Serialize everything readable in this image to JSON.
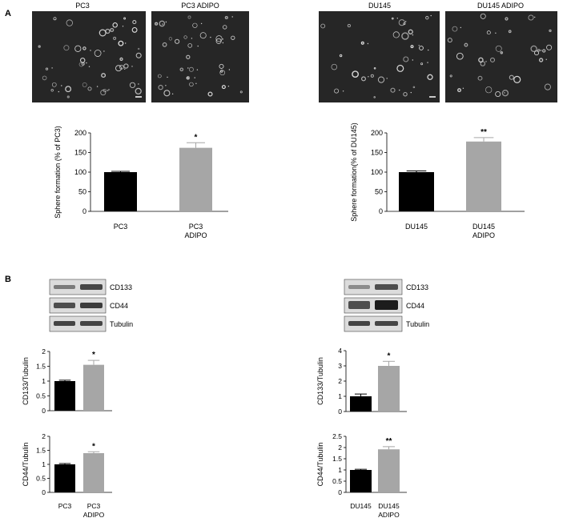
{
  "panel_labels": [
    "A",
    "B"
  ],
  "micrographs": [
    {
      "label": "PC3",
      "scale_bar": true
    },
    {
      "label": "PC3  ADIPO",
      "scale_bar": false
    },
    {
      "label": "DU145",
      "scale_bar": true
    },
    {
      "label": "DU145  ADIPO",
      "scale_bar": false
    }
  ],
  "blots_left": {
    "bands": [
      "CD133",
      "CD44",
      "Tubulin"
    ]
  },
  "blots_right": {
    "bands": [
      "CD133",
      "CD44",
      "Tubulin"
    ]
  },
  "colors": {
    "control": "#000000",
    "adipo": "#a6a6a6",
    "micrograph_bg": "#262626",
    "blot_bg": "#dcdcdc",
    "band": "#2a2a2a"
  },
  "chart_data": [
    {
      "id": "sphere-pc3",
      "type": "bar",
      "categories": [
        "PC3",
        "PC3\nADIPO"
      ],
      "values": [
        100,
        162
      ],
      "errors": [
        2,
        13
      ],
      "significance": [
        "",
        "*"
      ],
      "ylabel": "Sphere formation (% of PC3)",
      "ylim": [
        0,
        200
      ],
      "yticks": [
        "0",
        "50",
        "100",
        "150",
        "200"
      ]
    },
    {
      "id": "sphere-du145",
      "type": "bar",
      "categories": [
        "DU145",
        "DU145\nADIPO"
      ],
      "values": [
        100,
        178
      ],
      "errors": [
        3,
        10
      ],
      "significance": [
        "",
        "**"
      ],
      "ylabel": "Sphere formation(% of DU145)",
      "ylim": [
        0,
        200
      ],
      "yticks": [
        "0",
        "50",
        "100",
        "150",
        "200"
      ]
    },
    {
      "id": "cd133-pc3",
      "type": "bar",
      "categories": [
        "",
        ""
      ],
      "values": [
        1.0,
        1.55
      ],
      "errors": [
        0.03,
        0.15
      ],
      "significance": [
        "",
        "*"
      ],
      "ylabel": "CD133/Tubulin",
      "ylim": [
        0,
        2
      ],
      "yticks": [
        "0",
        "0.5",
        "1",
        "1.5",
        "2"
      ]
    },
    {
      "id": "cd133-du145",
      "type": "bar",
      "categories": [
        "",
        ""
      ],
      "values": [
        1.0,
        3.0
      ],
      "errors": [
        0.15,
        0.3
      ],
      "significance": [
        "",
        "*"
      ],
      "ylabel": "CD133/Tubulin",
      "ylim": [
        0,
        4
      ],
      "yticks": [
        "0",
        "1",
        "2",
        "3",
        "4"
      ]
    },
    {
      "id": "cd44-pc3",
      "type": "bar",
      "categories": [
        "PC3",
        "PC3\nADIPO"
      ],
      "values": [
        1.0,
        1.4
      ],
      "errors": [
        0.03,
        0.05
      ],
      "significance": [
        "",
        "*"
      ],
      "ylabel": "CD44/Tubulin",
      "ylim": [
        0,
        2
      ],
      "yticks": [
        "0",
        "0.5",
        "1",
        "1.5",
        "2"
      ]
    },
    {
      "id": "cd44-du145",
      "type": "bar",
      "categories": [
        "DU145",
        "DU145\nADIPO"
      ],
      "values": [
        1.0,
        1.92
      ],
      "errors": [
        0.03,
        0.12
      ],
      "significance": [
        "",
        "**"
      ],
      "ylabel": "CD44/Tubulin",
      "ylim": [
        0,
        2.5
      ],
      "yticks": [
        "0",
        "0.5",
        "1",
        "1.5",
        "2",
        "2.5"
      ]
    }
  ]
}
